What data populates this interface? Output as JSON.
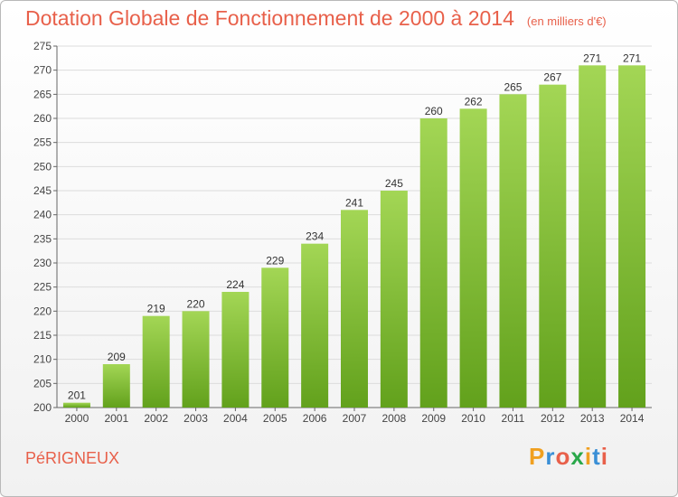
{
  "header": {
    "title": "Dotation Globale de Fonctionnement de 2000 à 2014",
    "unit": "(en milliers d'€)"
  },
  "footer": {
    "city": "PéRIGNEUX",
    "brand": "Proxiti"
  },
  "colors": {
    "title": "#e8604a",
    "bar_light": "#a3d655",
    "bar_dark": "#62a11c",
    "grid": "#dcdcdc",
    "axis": "#666666",
    "logo_letters": [
      "#f0a020",
      "#3a8fd6",
      "#e8604a",
      "#2aa84a",
      "#f0a020",
      "#3a8fd6",
      "#e8604a"
    ]
  },
  "chart_data": {
    "type": "bar",
    "title": "Dotation Globale de Fonctionnement de 2000 à 2014",
    "subtitle": "(en milliers d'€)",
    "xlabel": "",
    "ylabel": "",
    "categories": [
      "2000",
      "2001",
      "2002",
      "2003",
      "2004",
      "2005",
      "2006",
      "2007",
      "2008",
      "2009",
      "2010",
      "2011",
      "2012",
      "2013",
      "2014"
    ],
    "values": [
      201,
      209,
      219,
      220,
      224,
      229,
      234,
      241,
      245,
      260,
      262,
      265,
      267,
      271,
      271
    ],
    "ylim": [
      200,
      275
    ],
    "yticks": [
      200,
      205,
      210,
      215,
      220,
      225,
      230,
      235,
      240,
      245,
      250,
      255,
      260,
      265,
      270,
      275
    ],
    "grid": true,
    "legend": "none"
  }
}
